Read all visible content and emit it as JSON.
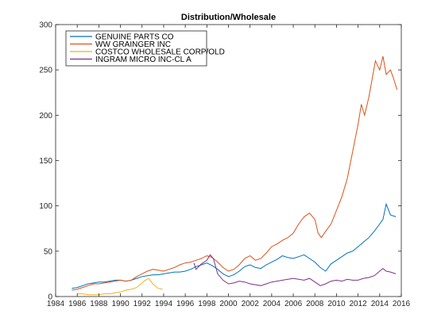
{
  "chart_data": {
    "type": "line",
    "title": "Distribution/Wholesale",
    "xlabel": "",
    "ylabel": "",
    "xlim": [
      1984,
      2016
    ],
    "ylim": [
      0,
      300
    ],
    "xticks": [
      1984,
      1986,
      1988,
      1990,
      1992,
      1994,
      1996,
      1998,
      2000,
      2002,
      2004,
      2006,
      2008,
      2010,
      2012,
      2014,
      2016
    ],
    "yticks": [
      0,
      50,
      100,
      150,
      200,
      250,
      300
    ],
    "grid": false,
    "legend_position": "top-left",
    "series": [
      {
        "name": "GENUINE PARTS CO",
        "color": "#0072bd",
        "x": [
          1985.5,
          1986,
          1986.5,
          1987,
          1987.5,
          1988,
          1988.5,
          1989,
          1989.5,
          1990,
          1990.5,
          1991,
          1991.5,
          1992,
          1992.5,
          1993,
          1993.5,
          1994,
          1994.5,
          1995,
          1995.5,
          1996,
          1996.5,
          1997,
          1997.5,
          1998,
          1998.5,
          1999,
          1999.5,
          2000,
          2000.5,
          2001,
          2001.5,
          2002,
          2002.5,
          2003,
          2003.5,
          2004,
          2004.5,
          2005,
          2005.5,
          2006,
          2006.5,
          2007,
          2007.5,
          2008,
          2008.5,
          2009,
          2009.5,
          2010,
          2010.5,
          2011,
          2011.5,
          2012,
          2012.5,
          2013,
          2013.5,
          2014,
          2014.3,
          2014.6,
          2015,
          2015.5
        ],
        "y": [
          9,
          10,
          12,
          14,
          15,
          16,
          16,
          17,
          18,
          18,
          17,
          18,
          20,
          22,
          23,
          24,
          24,
          25,
          26,
          27,
          27,
          28,
          30,
          33,
          35,
          37,
          34,
          30,
          25,
          22,
          24,
          28,
          33,
          35,
          32,
          31,
          35,
          38,
          41,
          45,
          43,
          42,
          44,
          46,
          42,
          38,
          32,
          28,
          36,
          40,
          44,
          48,
          50,
          55,
          60,
          65,
          72,
          80,
          85,
          102,
          90,
          88
        ]
      },
      {
        "name": "WW GRAINGER INC",
        "color": "#d95319",
        "x": [
          1985.5,
          1986,
          1986.5,
          1987,
          1987.5,
          1988,
          1988.5,
          1989,
          1989.5,
          1990,
          1990.5,
          1991,
          1991.5,
          1992,
          1992.5,
          1993,
          1993.5,
          1994,
          1994.5,
          1995,
          1995.5,
          1996,
          1996.5,
          1997,
          1997.5,
          1998,
          1998.5,
          1999,
          1999.5,
          2000,
          2000.5,
          2001,
          2001.5,
          2002,
          2002.5,
          2003,
          2003.5,
          2004,
          2004.5,
          2005,
          2005.5,
          2006,
          2006.5,
          2007,
          2007.5,
          2008,
          2008.3,
          2008.6,
          2009,
          2009.5,
          2010,
          2010.5,
          2011,
          2011.5,
          2012,
          2012.3,
          2012.6,
          2013,
          2013.3,
          2013.6,
          2014,
          2014.3,
          2014.6,
          2015,
          2015.3,
          2015.6
        ],
        "y": [
          7,
          8,
          10,
          12,
          14,
          14,
          15,
          16,
          17,
          18,
          17,
          18,
          22,
          25,
          28,
          30,
          29,
          28,
          30,
          32,
          35,
          37,
          38,
          40,
          42,
          45,
          43,
          38,
          32,
          28,
          30,
          35,
          42,
          45,
          40,
          42,
          48,
          55,
          58,
          62,
          65,
          70,
          80,
          88,
          92,
          85,
          70,
          65,
          72,
          80,
          95,
          110,
          130,
          160,
          190,
          212,
          200,
          220,
          240,
          260,
          250,
          265,
          245,
          250,
          240,
          228
        ]
      },
      {
        "name": "COSTCO WHOLESALE CORP/OLD",
        "color": "#edb120",
        "x": [
          1986,
          1986.5,
          1987,
          1987.5,
          1988,
          1988.5,
          1989,
          1989.5,
          1990,
          1990.5,
          1991,
          1991.5,
          1992,
          1992.3,
          1992.6,
          1993,
          1993.5,
          1993.9
        ],
        "y": [
          3,
          3,
          2,
          2,
          2,
          3,
          3,
          4,
          5,
          7,
          8,
          10,
          15,
          18,
          20,
          14,
          9,
          8
        ]
      },
      {
        "name": "INGRAM MICRO INC-CL A",
        "color": "#7e2f8e",
        "x": [
          1996.8,
          1997,
          1997.5,
          1998,
          1998.3,
          1998.6,
          1999,
          1999.5,
          2000,
          2000.5,
          2001,
          2001.5,
          2002,
          2002.5,
          2003,
          2003.5,
          2004,
          2004.5,
          2005,
          2005.5,
          2006,
          2006.5,
          2007,
          2007.5,
          2008,
          2008.5,
          2009,
          2009.5,
          2010,
          2010.5,
          2011,
          2011.5,
          2012,
          2012.5,
          2013,
          2013.5,
          2014,
          2014.3,
          2014.6,
          2015,
          2015.5
        ],
        "y": [
          37,
          30,
          36,
          40,
          46,
          42,
          25,
          18,
          14,
          15,
          17,
          16,
          14,
          13,
          12,
          14,
          16,
          17,
          18,
          19,
          20,
          19,
          18,
          20,
          16,
          12,
          14,
          17,
          18,
          17,
          19,
          18,
          18,
          20,
          21,
          23,
          28,
          31,
          28,
          27,
          25
        ]
      }
    ]
  }
}
